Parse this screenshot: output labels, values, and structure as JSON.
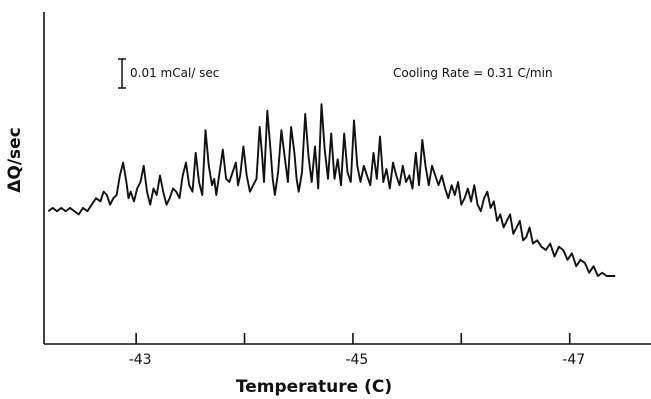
{
  "chart_data": {
    "type": "line",
    "title": "",
    "xlabel": "Temperature (C)",
    "ylabel": "ΔQ/sec",
    "x_reversed": true,
    "xlim": [
      -42.15,
      -47.75
    ],
    "ylim": [
      0,
      1
    ],
    "y_tick_labels": false,
    "x_ticks": [
      -43,
      -45,
      -47
    ],
    "x_tick_labels": [
      "-43",
      "-45",
      "-47"
    ],
    "x_minor_ticks": [
      -44,
      -46
    ],
    "grid": false,
    "legend": "none",
    "color": "#111111",
    "scale_bar_label": "0.01 mCal/ sec",
    "cooling_rate_label": "Cooling Rate = 0.31 C/min",
    "series": [
      {
        "x": [
          -42.19,
          -42.23,
          -42.27,
          -42.31,
          -42.35,
          -42.39,
          -42.43,
          -42.47,
          -42.51,
          -42.55,
          -42.59,
          -42.63,
          -42.67,
          -42.7,
          -42.73,
          -42.76,
          -42.79,
          -42.82,
          -42.85,
          -42.88,
          -42.91,
          -42.93,
          -42.95,
          -42.98,
          -43.01,
          -43.04,
          -43.07,
          -43.1,
          -43.13,
          -43.16,
          -43.19,
          -43.22,
          -43.25,
          -43.28,
          -43.31,
          -43.34,
          -43.37,
          -43.4,
          -43.43,
          -43.46,
          -43.49,
          -43.52,
          -43.55,
          -43.58,
          -43.61,
          -43.64,
          -43.67,
          -43.7,
          -43.72,
          -43.74,
          -43.77,
          -43.8,
          -43.83,
          -43.86,
          -43.89,
          -43.92,
          -43.94,
          -43.96,
          -43.99,
          -44.02,
          -44.05,
          -44.08,
          -44.11,
          -44.14,
          -44.16,
          -44.18,
          -44.21,
          -44.24,
          -44.26,
          -44.28,
          -44.31,
          -44.34,
          -44.37,
          -44.4,
          -44.43,
          -44.46,
          -44.48,
          -44.5,
          -44.53,
          -44.56,
          -44.59,
          -44.62,
          -44.65,
          -44.68,
          -44.71,
          -44.74,
          -44.77,
          -44.8,
          -44.83,
          -44.86,
          -44.89,
          -44.92,
          -44.95,
          -44.98,
          -45.01,
          -45.04,
          -45.07,
          -45.1,
          -45.13,
          -45.16,
          -45.19,
          -45.22,
          -45.25,
          -45.28,
          -45.31,
          -45.34,
          -45.37,
          -45.4,
          -45.43,
          -45.46,
          -45.49,
          -45.52,
          -45.55,
          -45.58,
          -45.61,
          -45.64,
          -45.67,
          -45.7,
          -45.73,
          -45.76,
          -45.79,
          -45.82,
          -45.85,
          -45.88,
          -45.91,
          -45.94,
          -45.97,
          -46.0,
          -46.03,
          -46.06,
          -46.09,
          -46.12,
          -46.15,
          -46.18,
          -46.21,
          -46.24,
          -46.27,
          -46.3,
          -46.33,
          -46.36,
          -46.39,
          -46.42,
          -46.45,
          -46.48,
          -46.51,
          -46.54,
          -46.57,
          -46.6,
          -46.63,
          -46.66,
          -46.7,
          -46.74,
          -46.78,
          -46.82,
          -46.86,
          -46.9,
          -46.94,
          -46.98,
          -47.02,
          -47.06,
          -47.1,
          -47.14,
          -47.18,
          -47.22,
          -47.26,
          -47.3,
          -47.34,
          -47.38,
          -47.42
        ],
        "y": [
          0.41,
          0.42,
          0.41,
          0.42,
          0.41,
          0.42,
          0.41,
          0.4,
          0.42,
          0.41,
          0.43,
          0.45,
          0.44,
          0.47,
          0.46,
          0.43,
          0.45,
          0.46,
          0.52,
          0.56,
          0.5,
          0.45,
          0.47,
          0.44,
          0.48,
          0.5,
          0.55,
          0.47,
          0.43,
          0.48,
          0.46,
          0.52,
          0.47,
          0.43,
          0.45,
          0.48,
          0.47,
          0.45,
          0.52,
          0.56,
          0.49,
          0.47,
          0.59,
          0.5,
          0.46,
          0.66,
          0.55,
          0.49,
          0.51,
          0.46,
          0.53,
          0.6,
          0.51,
          0.5,
          0.53,
          0.56,
          0.49,
          0.52,
          0.61,
          0.52,
          0.47,
          0.49,
          0.51,
          0.67,
          0.59,
          0.5,
          0.72,
          0.6,
          0.51,
          0.46,
          0.53,
          0.66,
          0.58,
          0.5,
          0.67,
          0.59,
          0.51,
          0.47,
          0.53,
          0.71,
          0.58,
          0.5,
          0.61,
          0.48,
          0.74,
          0.6,
          0.51,
          0.65,
          0.51,
          0.57,
          0.49,
          0.65,
          0.53,
          0.5,
          0.69,
          0.55,
          0.5,
          0.55,
          0.52,
          0.49,
          0.59,
          0.51,
          0.64,
          0.5,
          0.54,
          0.48,
          0.56,
          0.52,
          0.49,
          0.55,
          0.5,
          0.52,
          0.48,
          0.59,
          0.49,
          0.63,
          0.55,
          0.49,
          0.55,
          0.52,
          0.49,
          0.52,
          0.48,
          0.45,
          0.49,
          0.46,
          0.5,
          0.43,
          0.45,
          0.48,
          0.44,
          0.49,
          0.43,
          0.41,
          0.45,
          0.47,
          0.42,
          0.44,
          0.38,
          0.4,
          0.36,
          0.38,
          0.4,
          0.34,
          0.36,
          0.38,
          0.32,
          0.33,
          0.36,
          0.31,
          0.32,
          0.3,
          0.29,
          0.31,
          0.27,
          0.3,
          0.29,
          0.26,
          0.28,
          0.24,
          0.26,
          0.25,
          0.22,
          0.24,
          0.21,
          0.22,
          0.21,
          0.21,
          0.21
        ]
      }
    ]
  }
}
